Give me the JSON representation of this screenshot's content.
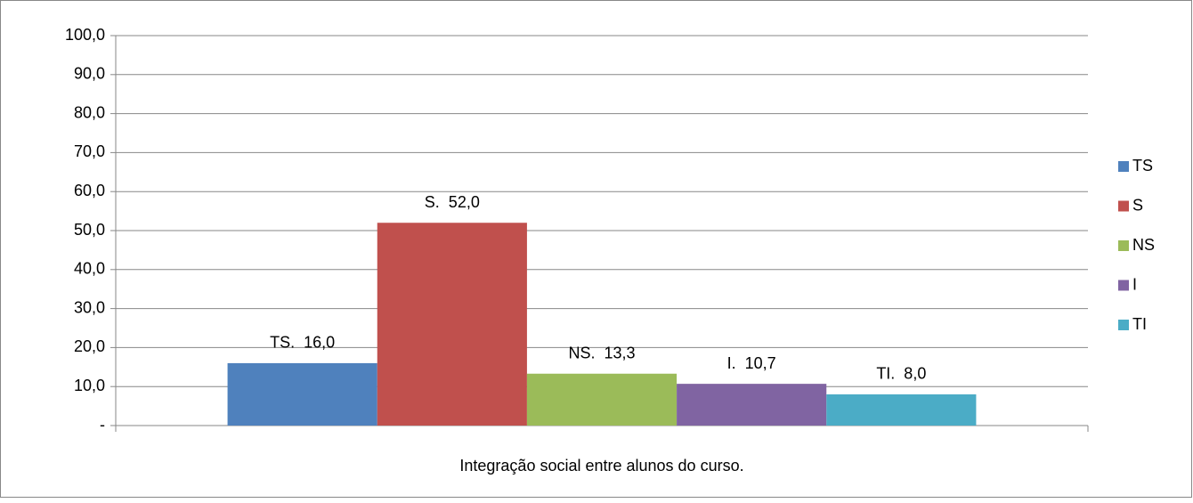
{
  "chart_data": {
    "type": "bar",
    "categories": [
      "Integração social entre alunos do curso."
    ],
    "series": [
      {
        "name": "TS",
        "color": "#4f81bd",
        "values": [
          16.0
        ],
        "value_labels": [
          "TS.  16,0"
        ]
      },
      {
        "name": "S",
        "color": "#c0504d",
        "values": [
          52.0
        ],
        "value_labels": [
          "S.  52,0"
        ]
      },
      {
        "name": "NS",
        "color": "#9bbb59",
        "values": [
          13.3
        ],
        "value_labels": [
          "NS.  13,3"
        ]
      },
      {
        "name": "I",
        "color": "#8064a2",
        "values": [
          10.7
        ],
        "value_labels": [
          "I.  10,7"
        ]
      },
      {
        "name": "TI",
        "color": "#4bacc6",
        "values": [
          8.0
        ],
        "value_labels": [
          "TI.  8,0"
        ]
      }
    ],
    "ylim": [
      0,
      100
    ],
    "yticks": [
      {
        "value": 0,
        "label": "-"
      },
      {
        "value": 10,
        "label": "10,0"
      },
      {
        "value": 20,
        "label": "20,0"
      },
      {
        "value": 30,
        "label": "30,0"
      },
      {
        "value": 40,
        "label": "40,0"
      },
      {
        "value": 50,
        "label": "50,0"
      },
      {
        "value": 60,
        "label": "60,0"
      },
      {
        "value": 70,
        "label": "70,0"
      },
      {
        "value": 80,
        "label": "80,0"
      },
      {
        "value": 90,
        "label": "90,0"
      },
      {
        "value": 100,
        "label": "100,0"
      }
    ],
    "grid": true,
    "legend": "right"
  }
}
